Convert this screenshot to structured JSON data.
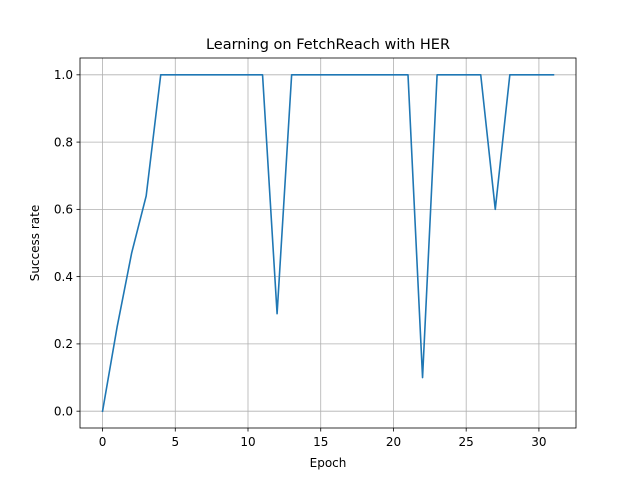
{
  "chart_data": {
    "type": "line",
    "title": "Learning on FetchReach with HER",
    "xlabel": "Epoch",
    "ylabel": "Success rate",
    "xlim": [
      -1.55,
      32.55
    ],
    "ylim": [
      -0.05,
      1.05
    ],
    "xticks": [
      0,
      5,
      10,
      15,
      20,
      25,
      30
    ],
    "yticks": [
      0.0,
      0.2,
      0.4,
      0.6,
      0.8,
      1.0
    ],
    "xtick_labels": [
      "0",
      "5",
      "10",
      "15",
      "20",
      "25",
      "30"
    ],
    "ytick_labels": [
      "0.0",
      "0.2",
      "0.4",
      "0.6",
      "0.8",
      "1.0"
    ],
    "grid": true,
    "series": [
      {
        "color": "#1f77b4",
        "x": [
          0,
          1,
          2,
          3,
          4,
          5,
          6,
          7,
          8,
          9,
          10,
          11,
          12,
          13,
          14,
          15,
          16,
          17,
          18,
          19,
          20,
          21,
          22,
          23,
          24,
          25,
          26,
          27,
          28,
          29,
          30,
          31
        ],
        "y": [
          0.0,
          0.25,
          0.47,
          0.64,
          1.0,
          1.0,
          1.0,
          1.0,
          1.0,
          1.0,
          1.0,
          1.0,
          0.29,
          1.0,
          1.0,
          1.0,
          1.0,
          1.0,
          1.0,
          1.0,
          1.0,
          1.0,
          0.1,
          1.0,
          1.0,
          1.0,
          1.0,
          0.6,
          1.0,
          1.0,
          1.0,
          1.0
        ]
      }
    ]
  }
}
